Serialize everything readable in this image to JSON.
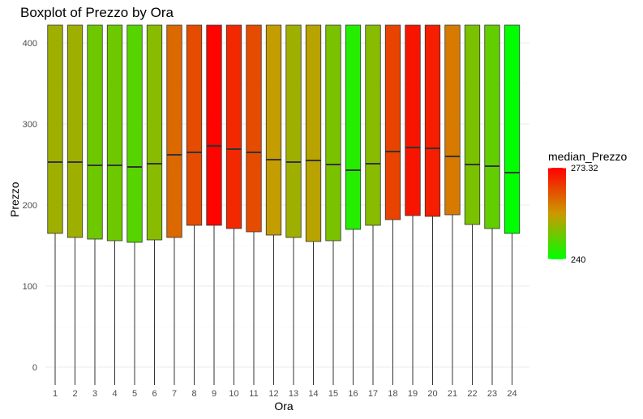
{
  "chart_data": {
    "type": "boxplot",
    "title": "Boxplot of Prezzo by Ora",
    "xlabel": "Ora",
    "ylabel": "Prezzo",
    "ylim": [
      -22,
      422
    ],
    "yticks": [
      0,
      100,
      200,
      300,
      400
    ],
    "grid": true,
    "categories": [
      "1",
      "2",
      "3",
      "4",
      "5",
      "6",
      "7",
      "8",
      "9",
      "10",
      "11",
      "12",
      "13",
      "14",
      "15",
      "16",
      "17",
      "18",
      "19",
      "20",
      "21",
      "22",
      "23",
      "24"
    ],
    "series": [
      {
        "median": [
          253,
          253,
          249,
          249,
          247,
          251,
          262,
          265,
          273,
          269,
          265,
          256,
          253,
          255,
          250,
          243,
          251,
          266,
          271,
          270,
          260,
          250,
          248,
          240
        ],
        "q1": [
          165,
          160,
          158,
          156,
          154,
          157,
          160,
          175,
          175,
          171,
          167,
          163,
          160,
          155,
          156,
          170,
          175,
          182,
          187,
          186,
          188,
          176,
          171,
          165
        ],
        "q3": [
          422,
          422,
          422,
          422,
          422,
          422,
          422,
          422,
          422,
          422,
          422,
          422,
          422,
          422,
          422,
          422,
          422,
          422,
          422,
          422,
          422,
          422,
          422,
          422
        ],
        "whisker_low": [
          -22,
          -22,
          -22,
          -22,
          -22,
          -22,
          -22,
          -22,
          -22,
          -22,
          -22,
          -22,
          -22,
          -22,
          -22,
          -22,
          -22,
          -22,
          -22,
          -22,
          -22,
          -22,
          -22,
          -22
        ],
        "whisker_high": [
          422,
          422,
          422,
          422,
          422,
          422,
          422,
          422,
          422,
          422,
          422,
          422,
          422,
          422,
          422,
          422,
          422,
          422,
          422,
          422,
          422,
          422,
          422,
          422
        ]
      }
    ],
    "fill_by": "median_Prezzo",
    "color_scale": {
      "low": 240,
      "high": 273.32,
      "low_color": "#00ff00",
      "mid_color": "#cc9900",
      "high_color": "#ff0000"
    },
    "legend": {
      "title": "median_Prezzo",
      "placement": "right",
      "labels": [
        "273.32",
        "240"
      ]
    }
  }
}
